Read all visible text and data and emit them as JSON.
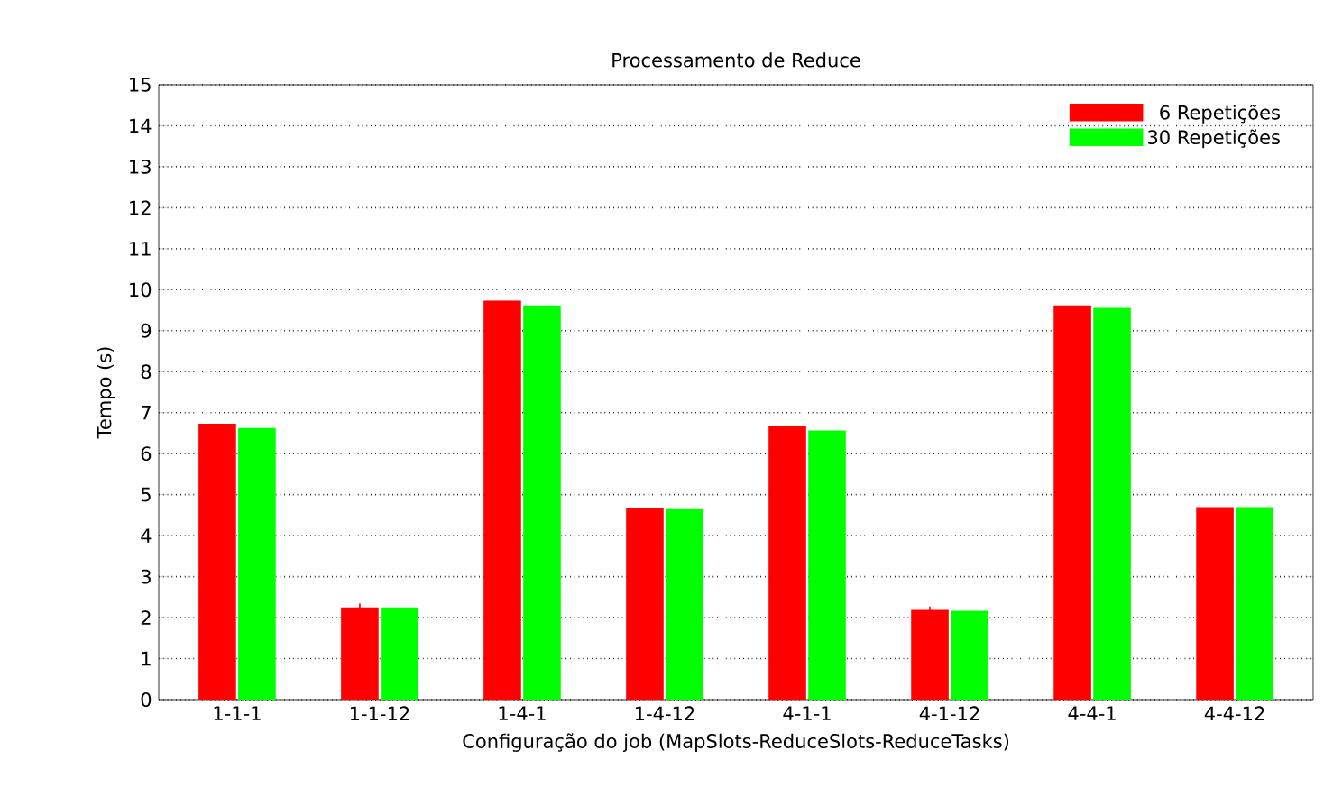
{
  "chart_data": {
    "type": "bar",
    "title": "Processamento de Reduce",
    "xlabel": "Configuração do job (MapSlots-ReduceSlots-ReduceTasks)",
    "ylabel": "Tempo (s)",
    "categories": [
      "1-1-1",
      "1-1-12",
      "1-4-1",
      "1-4-12",
      "4-1-1",
      "4-1-12",
      "4-4-1",
      "4-4-12"
    ],
    "series": [
      {
        "name": "6 Repetições",
        "color": "#ff0000",
        "values": [
          6.71,
          2.23,
          9.72,
          4.65,
          6.67,
          2.17,
          9.6,
          4.68
        ],
        "errors": [
          null,
          0.12,
          null,
          null,
          null,
          0.1,
          null,
          null
        ]
      },
      {
        "name": "30 Repetições",
        "color": "#00ff00",
        "values": [
          6.61,
          2.23,
          9.6,
          4.63,
          6.55,
          2.15,
          9.54,
          4.68
        ]
      }
    ],
    "ylim": [
      0,
      15
    ],
    "yticks": [
      0,
      1,
      2,
      3,
      4,
      5,
      6,
      7,
      8,
      9,
      10,
      11,
      12,
      13,
      14,
      15
    ],
    "grid": "y",
    "legend": "top right"
  }
}
